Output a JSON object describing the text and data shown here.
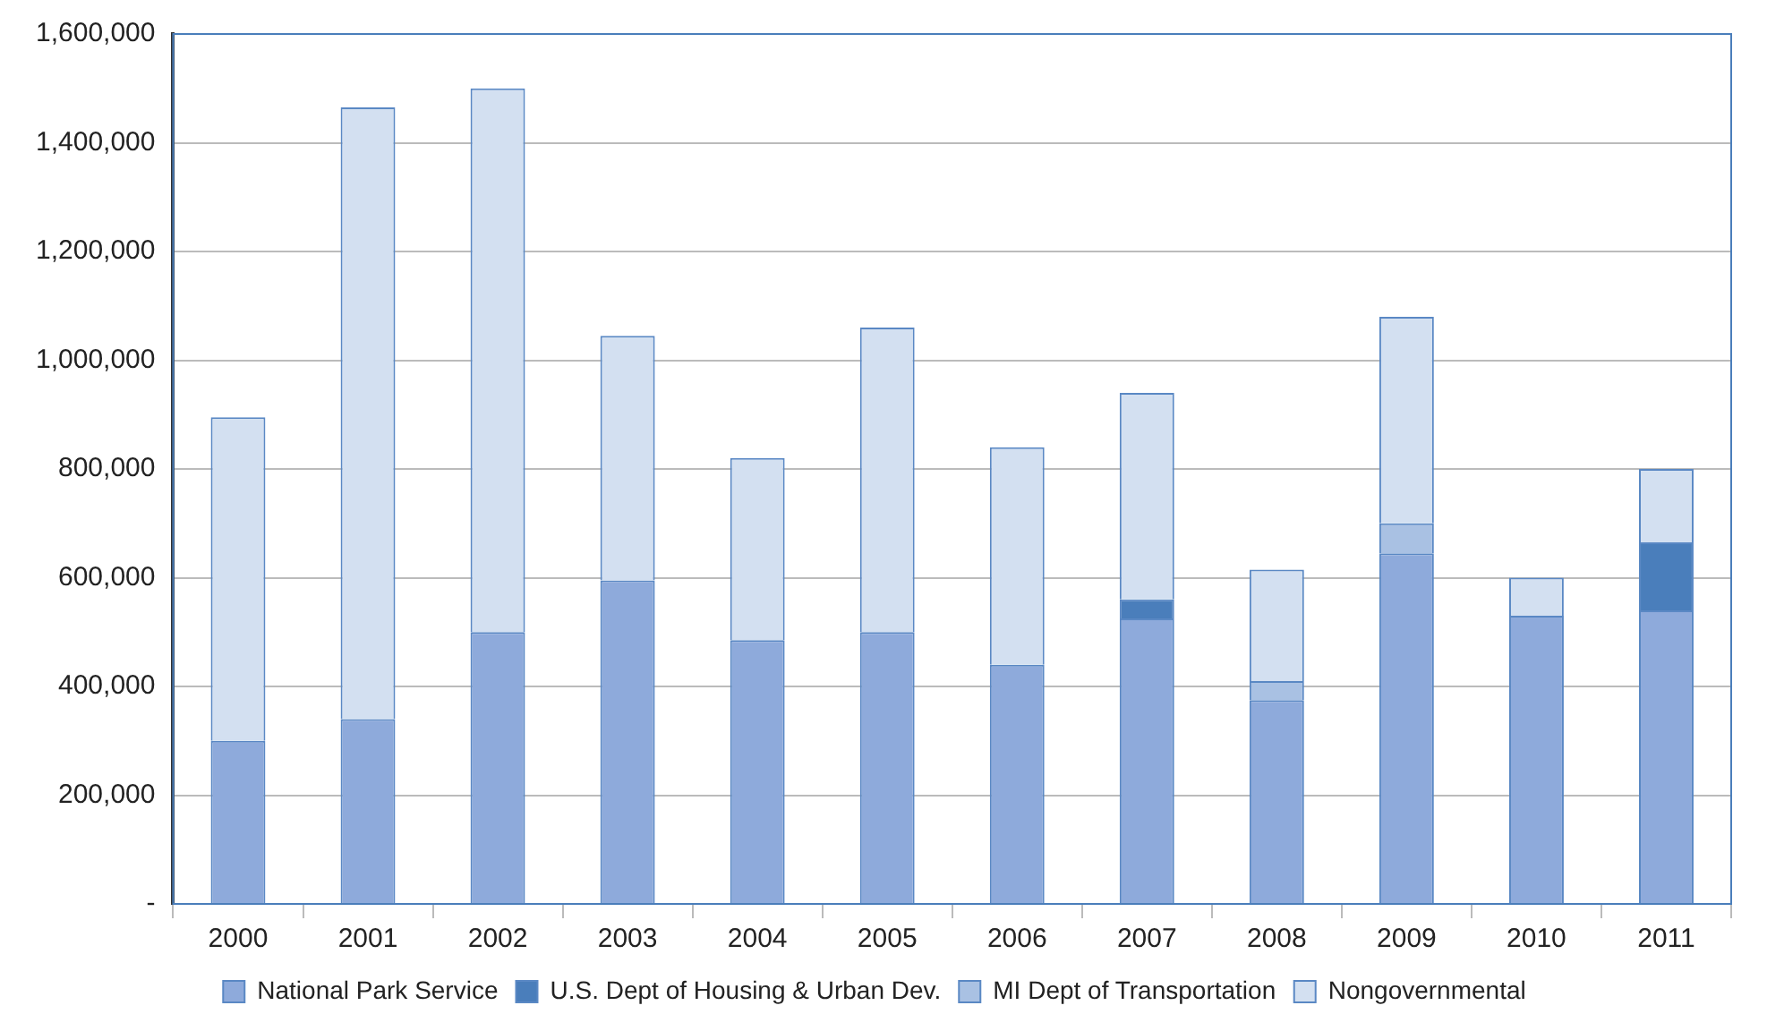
{
  "chart_data": {
    "type": "bar",
    "stacked": true,
    "categories": [
      "2000",
      "2001",
      "2002",
      "2003",
      "2004",
      "2005",
      "2006",
      "2007",
      "2008",
      "2009",
      "2010",
      "2011"
    ],
    "series": [
      {
        "name": "National Park Service",
        "color": "#8eaadb",
        "values": [
          300000,
          340000,
          500000,
          595000,
          485000,
          500000,
          440000,
          525000,
          375000,
          645000,
          530000,
          540000
        ]
      },
      {
        "name": "U.S. Dept of Housing & Urban Dev.",
        "color": "#4a7ebb",
        "values": [
          null,
          null,
          null,
          null,
          null,
          null,
          null,
          35000,
          null,
          null,
          null,
          125000
        ]
      },
      {
        "name": "MI Dept of Transportation",
        "color": "#a9c1e3",
        "values": [
          null,
          null,
          null,
          null,
          null,
          null,
          null,
          null,
          35000,
          55000,
          null,
          null
        ]
      },
      {
        "name": "Nongovernmental",
        "color": "#d3e0f1",
        "values": [
          595000,
          1125000,
          1000000,
          450000,
          335000,
          560000,
          400000,
          380000,
          205000,
          380000,
          70000,
          135000
        ]
      }
    ],
    "ylim": [
      0,
      1600000
    ],
    "yticks": [
      {
        "value": 0,
        "label": "-"
      },
      {
        "value": 200000,
        "label": "200,000"
      },
      {
        "value": 400000,
        "label": "400,000"
      },
      {
        "value": 600000,
        "label": "600,000"
      },
      {
        "value": 800000,
        "label": "800,000"
      },
      {
        "value": 1000000,
        "label": "1,000,000"
      },
      {
        "value": 1200000,
        "label": "1,200,000"
      },
      {
        "value": 1400000,
        "label": "1,400,000"
      },
      {
        "value": 1600000,
        "label": "1,600,000"
      }
    ],
    "grid": "y",
    "legend": "bottom"
  }
}
